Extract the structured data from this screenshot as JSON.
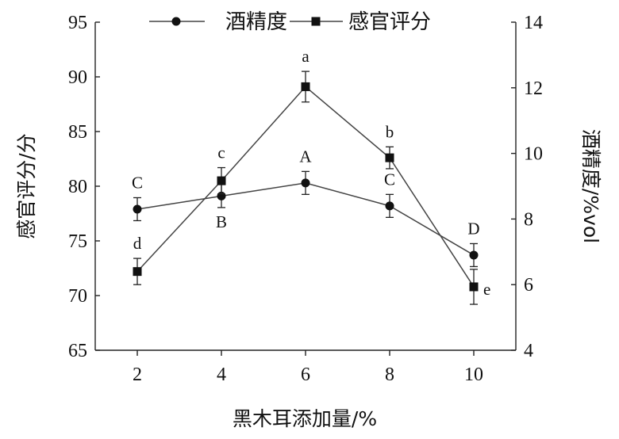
{
  "chart_data": {
    "type": "line",
    "x": [
      2,
      4,
      6,
      8,
      10
    ],
    "xlabel": "黑木耳添加量/%",
    "xticks": [
      2,
      4,
      6,
      8,
      10
    ],
    "ylabel_left": "感官评分/分",
    "ylim_left": [
      65,
      95
    ],
    "yticks_left": [
      65,
      70,
      75,
      80,
      85,
      90,
      95
    ],
    "ylabel_right": "酒精度/%vol",
    "ylim_right": [
      4,
      14
    ],
    "yticks_right": [
      4,
      6,
      8,
      10,
      12,
      14
    ],
    "grid": false,
    "legend_position": "top-center",
    "series": [
      {
        "name": "酒精度",
        "marker": "circle",
        "axis": "right",
        "values": [
          8.3,
          8.7,
          9.1,
          8.4,
          6.9
        ],
        "errors": [
          0.35,
          0.35,
          0.35,
          0.35,
          0.35
        ],
        "labels": [
          "C",
          "B",
          "A",
          "C",
          "D"
        ],
        "label_side": [
          "above",
          "below",
          "above",
          "above",
          "above"
        ]
      },
      {
        "name": "感官评分",
        "marker": "square",
        "axis": "left",
        "values": [
          72.2,
          80.5,
          89.1,
          82.6,
          70.8
        ],
        "errors": [
          1.2,
          1.2,
          1.4,
          1.0,
          1.6
        ],
        "labels": [
          "d",
          "c",
          "a",
          "b",
          "e"
        ],
        "label_side": [
          "above",
          "above",
          "above",
          "above",
          "right"
        ]
      }
    ]
  }
}
